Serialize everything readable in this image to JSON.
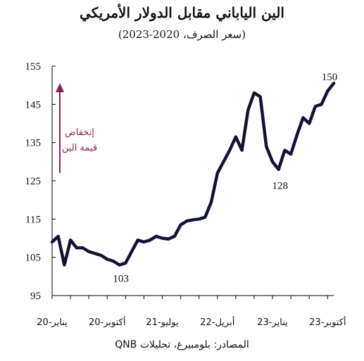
{
  "title": "الين الياباني مقابل الدولار الأمريكي",
  "subtitle": "(سعر الصرف، 2020-2023)",
  "source": "المصادر: بلومبيرغ، تحليلات QNB",
  "colors": {
    "line": "#0f1436",
    "arrow": "#8e1f5e",
    "axis": "#000000"
  },
  "chart_data": {
    "type": "line",
    "title": "الين الياباني مقابل الدولار الأمريكي",
    "subtitle": "(سعر الصرف، 2020-2023)",
    "ylim": [
      95,
      155
    ],
    "yticks": [
      95,
      105,
      115,
      125,
      135,
      145,
      155
    ],
    "x_tick_labels": [
      "يناير-20",
      "أكتوبر-20",
      "يوليو-21",
      "أبريل-22",
      "يناير-23",
      "أكتوبر-23"
    ],
    "x_tick_dates": [
      "2020-01",
      "2020-10",
      "2021-07",
      "2022-04",
      "2023-01",
      "2023-10"
    ],
    "xlim": [
      "2020-01",
      "2023-11"
    ],
    "grid": false,
    "series": [
      {
        "x": [
          "2020-01",
          "2020-02",
          "2020-03",
          "2020-04",
          "2020-05",
          "2020-06",
          "2020-07",
          "2020-08",
          "2020-09",
          "2020-10",
          "2020-11",
          "2020-12",
          "2021-01",
          "2021-02",
          "2021-03",
          "2021-04",
          "2021-05",
          "2021-06",
          "2021-07",
          "2021-08",
          "2021-09",
          "2021-10",
          "2021-11",
          "2021-12",
          "2022-01",
          "2022-02",
          "2022-03",
          "2022-04",
          "2022-05",
          "2022-06",
          "2022-07",
          "2022-08",
          "2022-09",
          "2022-10",
          "2022-11",
          "2022-12",
          "2023-01",
          "2023-02",
          "2023-03",
          "2023-04",
          "2023-05",
          "2023-06",
          "2023-07",
          "2023-08",
          "2023-09",
          "2023-10",
          "2023-11"
        ],
        "values": [
          109.0,
          110.5,
          103.0,
          109.5,
          107.5,
          107.5,
          106.5,
          106.0,
          105.5,
          104.5,
          104.0,
          103.0,
          103.5,
          106.5,
          109.5,
          109.0,
          109.5,
          110.5,
          110.0,
          109.8,
          110.5,
          113.5,
          114.5,
          114.8,
          115.0,
          115.5,
          119.5,
          127.0,
          130.0,
          133.0,
          136.5,
          133.0,
          143.5,
          148.0,
          147.0,
          134.0,
          130.0,
          128.0,
          133.0,
          132.0,
          137.0,
          141.5,
          140.0,
          144.5,
          145.0,
          148.5,
          150.5
        ]
      }
    ],
    "annotations": [
      {
        "text": "103",
        "x": "2020-12",
        "y": 103
      },
      {
        "text": "150",
        "x": "2023-11",
        "y": 150
      },
      {
        "text": "128",
        "x": "2023-02",
        "y": 128
      },
      {
        "text": "إنخفاض\nقيمة الين",
        "kind": "arrow-up"
      }
    ]
  }
}
